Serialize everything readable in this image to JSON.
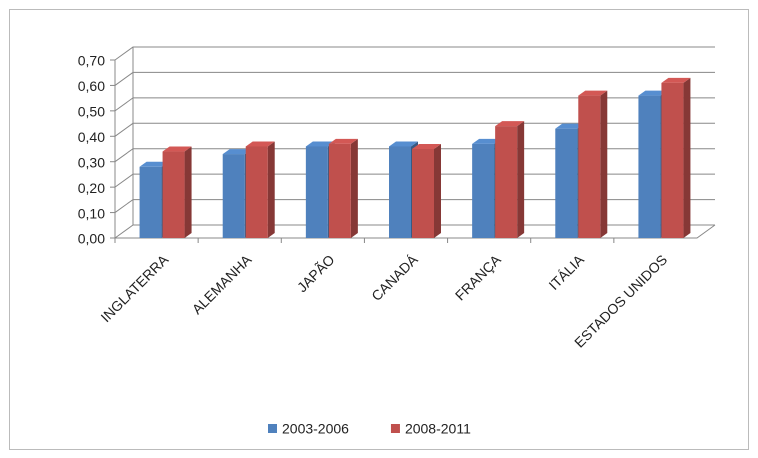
{
  "chart_data": {
    "type": "bar3d",
    "categories": [
      "INGLATERRA",
      "ALEMANHA",
      "JAPÃO",
      "CANADÁ",
      "FRANÇA",
      "ITÁLIA",
      "ESTADOS UNIDOS"
    ],
    "series": [
      {
        "name": "2003-2006",
        "color": "#4f81bd",
        "values": [
          0.28,
          0.33,
          0.36,
          0.36,
          0.37,
          0.43,
          0.56
        ]
      },
      {
        "name": "2008-2011",
        "color": "#c0504d",
        "values": [
          0.34,
          0.36,
          0.37,
          0.35,
          0.44,
          0.56,
          0.61
        ]
      }
    ],
    "ylim": [
      0,
      0.7
    ],
    "yticks": [
      {
        "value": 0,
        "label": "0,00"
      },
      {
        "value": 0.1,
        "label": "0,10"
      },
      {
        "value": 0.2,
        "label": "0,20"
      },
      {
        "value": 0.3,
        "label": "0,30"
      },
      {
        "value": 0.4,
        "label": "0,40"
      },
      {
        "value": 0.5,
        "label": "0,50"
      },
      {
        "value": 0.6,
        "label": "0,60"
      },
      {
        "value": 0.7,
        "label": "0,70"
      }
    ],
    "grid": true,
    "legend": "bottom"
  }
}
